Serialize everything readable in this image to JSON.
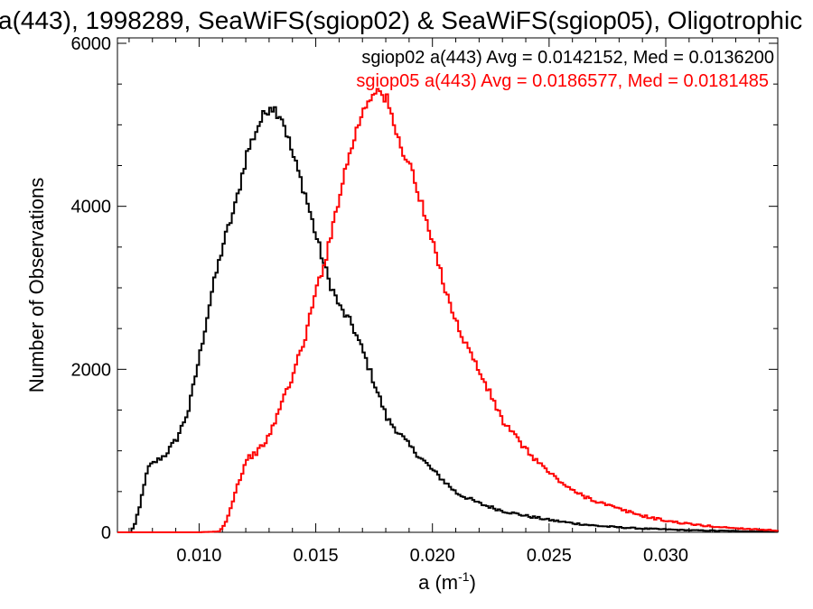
{
  "chart_data": {
    "type": "line",
    "title": "a(443), 1998289, SeaWiFS(sgiop02) & SeaWiFS(sgiop05), Oligotrophic",
    "xlabel": "a (m",
    "xlabel_sup": "-1",
    "xlabel_close": ")",
    "ylabel": "Number of Observations",
    "xlim": [
      0.0065,
      0.0348
    ],
    "ylim": [
      0,
      6000
    ],
    "xticks": [
      0.01,
      0.015,
      0.02,
      0.025,
      0.03
    ],
    "xtick_labels": [
      "0.010",
      "0.015",
      "0.020",
      "0.025",
      "0.030"
    ],
    "yticks": [
      0,
      2000,
      4000,
      6000
    ],
    "ytick_labels": [
      "0",
      "2000",
      "4000",
      "6000"
    ],
    "grid": false,
    "legend_position": "top-right",
    "annotations": [
      "sgiop02 a(443) Avg = 0.0142152, Med = 0.0136200",
      "sgiop05 a(443) Avg = 0.0186577, Med = 0.0181485"
    ],
    "series": [
      {
        "color": "#000000",
        "x": [
          0.0065,
          0.007,
          0.0072,
          0.0074,
          0.0076,
          0.0078,
          0.008,
          0.0085,
          0.009,
          0.0095,
          0.01,
          0.0105,
          0.011,
          0.0115,
          0.012,
          0.0125,
          0.013,
          0.0135,
          0.014,
          0.0145,
          0.015,
          0.0155,
          0.016,
          0.0165,
          0.017,
          0.0175,
          0.018,
          0.019,
          0.02,
          0.021,
          0.022,
          0.023,
          0.024,
          0.025,
          0.026,
          0.027,
          0.028,
          0.029,
          0.03,
          0.031,
          0.032,
          0.033,
          0.034,
          0.0348
        ],
        "y": [
          0,
          0,
          100,
          300,
          600,
          800,
          850,
          950,
          1150,
          1500,
          2200,
          2950,
          3550,
          4000,
          4650,
          5000,
          5250,
          5100,
          4600,
          4150,
          3600,
          3100,
          2750,
          2550,
          2200,
          1800,
          1400,
          1050,
          750,
          480,
          350,
          260,
          200,
          150,
          110,
          80,
          60,
          45,
          35,
          25,
          20,
          15,
          10,
          5
        ]
      },
      {
        "color": "#ff0000",
        "x": [
          0.0065,
          0.01,
          0.0108,
          0.011,
          0.0112,
          0.0115,
          0.012,
          0.0125,
          0.013,
          0.0135,
          0.014,
          0.0145,
          0.015,
          0.0155,
          0.016,
          0.0165,
          0.017,
          0.0175,
          0.018,
          0.0185,
          0.019,
          0.0195,
          0.02,
          0.0205,
          0.021,
          0.0215,
          0.022,
          0.0225,
          0.023,
          0.024,
          0.025,
          0.026,
          0.027,
          0.028,
          0.029,
          0.03,
          0.031,
          0.032,
          0.033,
          0.034,
          0.0348
        ],
        "y": [
          0,
          0,
          10,
          80,
          200,
          500,
          900,
          1000,
          1200,
          1600,
          1950,
          2400,
          3000,
          3500,
          4200,
          4750,
          5200,
          5450,
          5300,
          4800,
          4500,
          4000,
          3500,
          3000,
          2550,
          2250,
          1950,
          1650,
          1350,
          1000,
          720,
          500,
          380,
          280,
          200,
          140,
          100,
          70,
          50,
          35,
          20
        ]
      }
    ]
  }
}
